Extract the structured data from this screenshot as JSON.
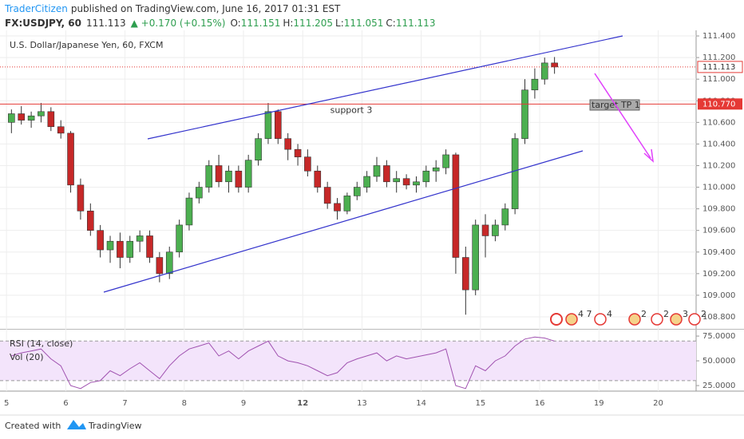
{
  "header": {
    "publisher": "TraderCitizen",
    "published": "published on TradingView.com, June 16, 2017 01:31 EST",
    "symbol": "FX:USDJPY, 60",
    "last": "111.113",
    "change": "▲ +0.170 (+0.15%)",
    "open_label": "O:",
    "open": "111.151",
    "high_label": "H:",
    "high": "111.205",
    "low_label": "L:",
    "low": "111.051",
    "close_label": "C:",
    "close": "111.113"
  },
  "footer": {
    "created": "Created with",
    "brand": "TradingView"
  },
  "chart_data": [
    {
      "type": "candlestick",
      "title": "U.S. Dollar/Japanese Yen, 60, FXCM",
      "up_color": "#4caf50",
      "down_color": "#c62828",
      "grid": true,
      "xlim": [
        -0.11,
        11.64
      ],
      "ylim": [
        108.689,
        111.452
      ],
      "yticks": [
        {
          "value": 108.8,
          "label": "108.800"
        },
        {
          "value": 109.0,
          "label": "109.000"
        },
        {
          "value": 109.2,
          "label": "109.200"
        },
        {
          "value": 109.4,
          "label": "109.400"
        },
        {
          "value": 109.6,
          "label": "109.600"
        },
        {
          "value": 109.8,
          "label": "109.800"
        },
        {
          "value": 110.0,
          "label": "110.000"
        },
        {
          "value": 110.2,
          "label": "110.200"
        },
        {
          "value": 110.4,
          "label": "110.400"
        },
        {
          "value": 110.6,
          "label": "110.600"
        },
        {
          "value": 110.8,
          "label": "110.800"
        },
        {
          "value": 111.0,
          "label": "111.000"
        },
        {
          "value": 111.2,
          "label": "111.200"
        },
        {
          "value": 111.4,
          "label": "111.400"
        }
      ],
      "x": [
        0.083,
        0.25,
        0.417,
        0.583,
        0.75,
        0.917,
        1.083,
        1.25,
        1.417,
        1.583,
        1.75,
        1.917,
        2.083,
        2.25,
        2.417,
        2.583,
        2.75,
        2.917,
        3.083,
        3.25,
        3.417,
        3.583,
        3.75,
        3.917,
        4.083,
        4.25,
        4.417,
        4.583,
        4.75,
        4.917,
        5.083,
        5.25,
        5.417,
        5.583,
        5.75,
        5.917,
        6.083,
        6.25,
        6.417,
        6.583,
        6.75,
        6.917,
        7.083,
        7.25,
        7.417,
        7.583,
        7.75,
        7.917,
        8.083,
        8.25,
        8.417,
        8.583,
        8.75,
        8.917,
        9.083,
        9.25
      ],
      "open": [
        110.6,
        110.68,
        110.62,
        110.66,
        110.7,
        110.56,
        110.5,
        110.02,
        109.78,
        109.6,
        109.42,
        109.5,
        109.35,
        109.5,
        109.55,
        109.35,
        109.2,
        109.4,
        109.65,
        109.9,
        110.0,
        110.2,
        110.05,
        110.15,
        110.0,
        110.25,
        110.45,
        110.7,
        110.45,
        110.35,
        110.28,
        110.15,
        110.0,
        109.85,
        109.78,
        109.92,
        110.0,
        110.1,
        110.2,
        110.05,
        110.08,
        110.02,
        110.05,
        110.15,
        110.18,
        110.3,
        109.35,
        109.05,
        109.65,
        109.55,
        109.65,
        109.8,
        110.45,
        110.9,
        111.0,
        111.15
      ],
      "high": [
        110.72,
        110.75,
        110.7,
        110.78,
        110.74,
        110.62,
        110.52,
        110.08,
        109.85,
        109.65,
        109.55,
        109.58,
        109.55,
        109.6,
        109.6,
        109.4,
        109.45,
        109.7,
        109.95,
        110.05,
        110.25,
        110.3,
        110.2,
        110.2,
        110.3,
        110.5,
        110.78,
        110.72,
        110.5,
        110.4,
        110.35,
        110.2,
        110.05,
        109.9,
        109.95,
        110.05,
        110.15,
        110.28,
        110.25,
        110.15,
        110.12,
        110.1,
        110.2,
        110.25,
        110.35,
        110.32,
        109.45,
        109.7,
        109.75,
        109.7,
        109.85,
        110.5,
        111.0,
        111.1,
        111.2,
        111.205
      ],
      "low": [
        110.5,
        110.58,
        110.55,
        110.6,
        110.52,
        110.45,
        109.95,
        109.7,
        109.55,
        109.35,
        109.3,
        109.25,
        109.3,
        109.4,
        109.3,
        109.12,
        109.15,
        109.35,
        109.6,
        109.85,
        109.95,
        110.0,
        109.95,
        109.95,
        109.95,
        110.2,
        110.4,
        110.4,
        110.25,
        110.2,
        110.1,
        109.95,
        109.8,
        109.7,
        109.75,
        109.88,
        109.95,
        110.05,
        110.0,
        109.95,
        109.98,
        109.95,
        110.0,
        110.05,
        110.12,
        109.2,
        108.82,
        109.0,
        109.35,
        109.5,
        109.6,
        109.75,
        110.4,
        110.82,
        110.95,
        111.05
      ],
      "close": [
        110.68,
        110.62,
        110.66,
        110.7,
        110.56,
        110.5,
        110.02,
        109.78,
        109.6,
        109.42,
        109.5,
        109.35,
        109.5,
        109.55,
        109.35,
        109.2,
        109.4,
        109.65,
        109.9,
        110.0,
        110.2,
        110.05,
        110.15,
        110.0,
        110.25,
        110.45,
        110.7,
        110.45,
        110.35,
        110.28,
        110.15,
        110.0,
        109.85,
        109.78,
        109.92,
        110.0,
        110.1,
        110.2,
        110.05,
        110.08,
        110.02,
        110.05,
        110.15,
        110.18,
        110.3,
        109.35,
        109.05,
        109.65,
        109.55,
        109.65,
        109.8,
        110.45,
        110.9,
        111.0,
        111.15,
        111.113
      ],
      "support": {
        "value": 110.77,
        "label": "110.770",
        "text": "support 3",
        "color": "#e53935"
      },
      "last_price": {
        "value": 111.113,
        "label": "111.113",
        "color": "#e53935"
      },
      "note": "target TP 1",
      "events": [
        "4 7",
        "4",
        "2",
        "2",
        "3",
        "2"
      ]
    },
    {
      "type": "line",
      "title": "RSI (14, close)",
      "subtitle": "Vol (20)",
      "color": "#a052b0",
      "xlim": [
        -0.11,
        11.64
      ],
      "ylim": [
        19.4,
        81.5
      ],
      "band": [
        30,
        70
      ],
      "yticks": [
        {
          "value": 25,
          "label": "25.0000"
        },
        {
          "value": 50,
          "label": "50.0000"
        },
        {
          "value": 75,
          "label": "75.0000"
        }
      ],
      "xticks": [
        {
          "value": 0,
          "label": "5"
        },
        {
          "value": 1,
          "label": "6"
        },
        {
          "value": 2,
          "label": "7"
        },
        {
          "value": 3,
          "label": "8"
        },
        {
          "value": 4,
          "label": "9"
        },
        {
          "value": 5,
          "label": "12"
        },
        {
          "value": 6,
          "label": "13"
        },
        {
          "value": 7,
          "label": "14"
        },
        {
          "value": 8,
          "label": "15"
        },
        {
          "value": 9,
          "label": "16"
        },
        {
          "value": 10,
          "label": "19"
        },
        {
          "value": 11,
          "label": "20"
        }
      ],
      "x": [
        0.083,
        0.25,
        0.417,
        0.583,
        0.75,
        0.917,
        1.083,
        1.25,
        1.417,
        1.583,
        1.75,
        1.917,
        2.083,
        2.25,
        2.417,
        2.583,
        2.75,
        2.917,
        3.083,
        3.25,
        3.417,
        3.583,
        3.75,
        3.917,
        4.083,
        4.25,
        4.417,
        4.583,
        4.75,
        4.917,
        5.083,
        5.25,
        5.417,
        5.583,
        5.75,
        5.917,
        6.083,
        6.25,
        6.417,
        6.583,
        6.75,
        6.917,
        7.083,
        7.25,
        7.417,
        7.583,
        7.75,
        7.917,
        8.083,
        8.25,
        8.417,
        8.583,
        8.75,
        8.917,
        9.083,
        9.25
      ],
      "values": [
        55,
        58,
        60,
        62,
        52,
        45,
        25,
        22,
        28,
        30,
        40,
        35,
        42,
        48,
        40,
        32,
        45,
        55,
        62,
        65,
        68,
        55,
        60,
        52,
        60,
        65,
        70,
        55,
        50,
        48,
        45,
        40,
        35,
        38,
        48,
        52,
        55,
        58,
        50,
        55,
        52,
        54,
        56,
        58,
        62,
        25,
        22,
        45,
        40,
        50,
        55,
        65,
        72,
        74,
        73,
        70
      ]
    }
  ]
}
